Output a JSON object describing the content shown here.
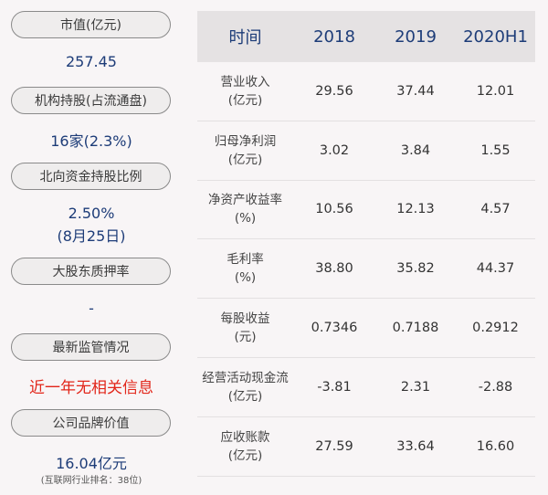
{
  "left": {
    "items": [
      {
        "label": "市值(亿元)",
        "value": "257.45"
      },
      {
        "label": "机构持股(占流通盘)",
        "value": "16家(2.3%)"
      },
      {
        "label": "北向资金持股比例",
        "value_line1": "2.50%",
        "value_line2": "(8月25日)"
      },
      {
        "label": "大股东质押率",
        "value": "-"
      },
      {
        "label": "最新监管情况",
        "value": "近一年无相关信息"
      },
      {
        "label": "公司品牌价值",
        "value": "16.04亿元",
        "note": "(互联网行业排名：38位)"
      }
    ]
  },
  "table": {
    "headers": [
      "时间",
      "2018",
      "2019",
      "2020H1"
    ],
    "rows": [
      {
        "label1": "营业收入",
        "label2": "(亿元)",
        "v": [
          "29.56",
          "37.44",
          "12.01"
        ]
      },
      {
        "label1": "归母净利润",
        "label2": "(亿元)",
        "v": [
          "3.02",
          "3.84",
          "1.55"
        ]
      },
      {
        "label1": "净资产收益率",
        "label2": "(%)",
        "v": [
          "10.56",
          "12.13",
          "4.57"
        ]
      },
      {
        "label1": "毛利率",
        "label2": "(%)",
        "v": [
          "38.80",
          "35.82",
          "44.37"
        ]
      },
      {
        "label1": "每股收益",
        "label2": "(元)",
        "v": [
          "0.7346",
          "0.7188",
          "0.2912"
        ]
      },
      {
        "label1": "经营活动现金流",
        "label2": "(亿元)",
        "v": [
          "-3.81",
          "2.31",
          "-2.88"
        ]
      },
      {
        "label1": "应收账款",
        "label2": "(亿元)",
        "v": [
          "27.59",
          "33.64",
          "16.60"
        ]
      }
    ]
  },
  "colors": {
    "value_blue": "#1d3c78",
    "alert_red": "#e2261a",
    "header_bg": "#e5e2e3"
  }
}
